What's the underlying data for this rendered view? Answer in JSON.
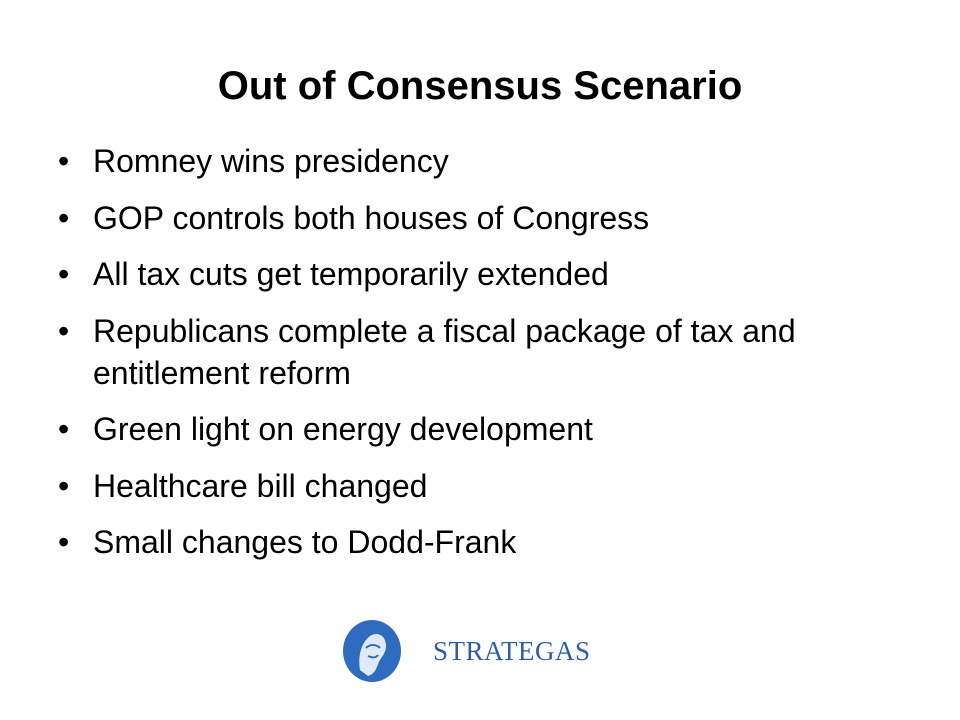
{
  "header": {
    "title": "Out of Consensus Scenario"
  },
  "bullets": [
    "Romney wins presidency",
    "GOP controls both houses of Congress",
    "All tax cuts get temporarily extended",
    "Republicans complete a fiscal package of tax and entitlement reform",
    "Green light on energy development",
    "Healthcare bill changed",
    "Small changes to Dodd-Frank"
  ],
  "logo": {
    "text": "STRATEGAS"
  }
}
